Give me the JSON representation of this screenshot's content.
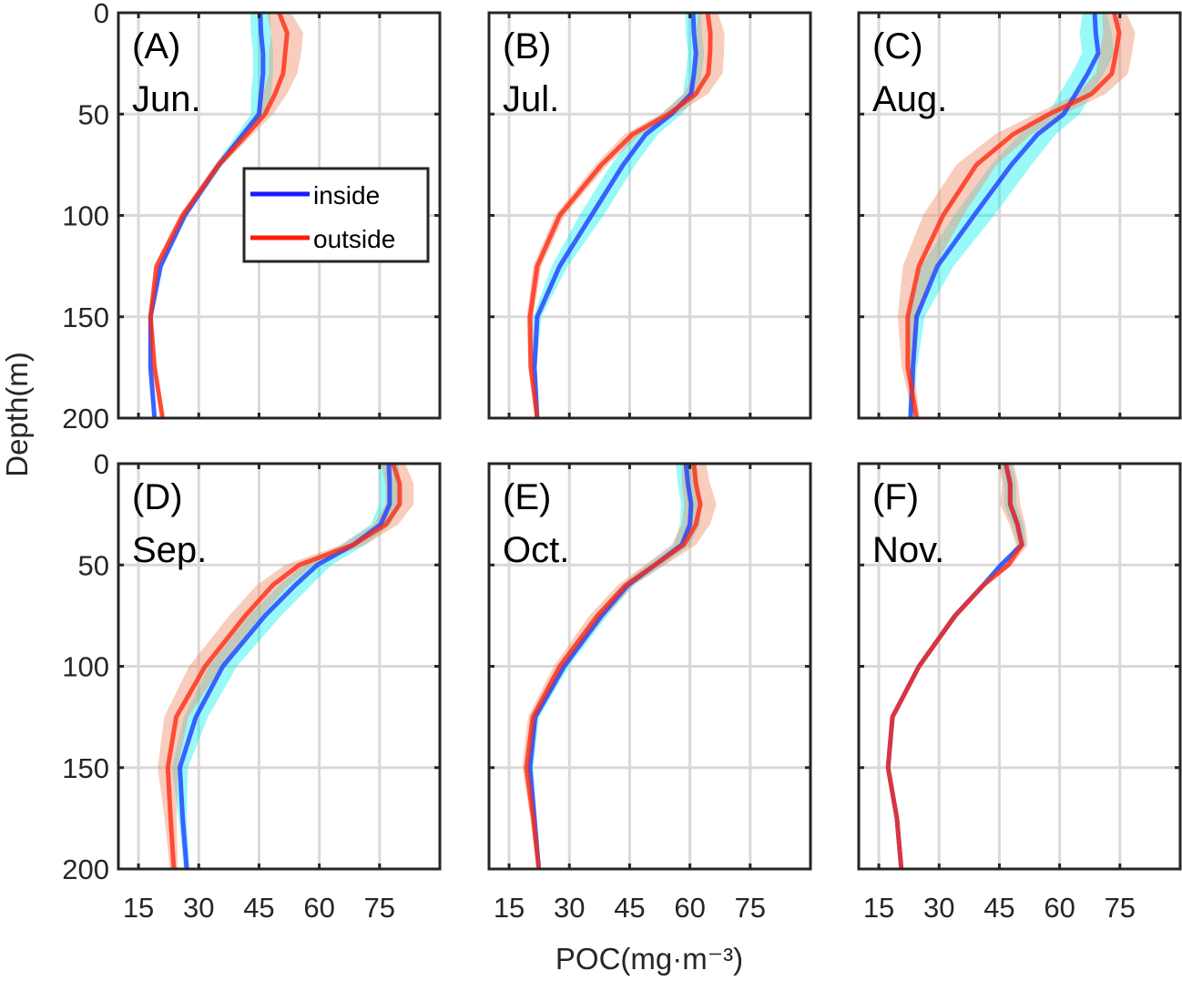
{
  "chart_data": {
    "type": "line",
    "layout": "2x3 panels",
    "xlabel": "POC(mg·m⁻³)",
    "ylabel": "Depth(m)",
    "xlim": [
      10,
      90
    ],
    "ylim": [
      0,
      200
    ],
    "y_reversed": true,
    "xticks": [
      15,
      30,
      45,
      60,
      75
    ],
    "yticks": [
      0,
      50,
      100,
      150,
      200
    ],
    "grid": true,
    "legend": {
      "position": "inside panel A, center-right",
      "entries": [
        "inside",
        "outside"
      ]
    },
    "colors": {
      "inside": "#1f3cff",
      "outside": "#ff2a14",
      "inside_band": "#00f0f0",
      "outside_band": "#f0906c"
    },
    "depth": [
      0,
      10,
      20,
      30,
      40,
      50,
      60,
      75,
      100,
      125,
      150,
      175,
      200
    ],
    "panels": [
      {
        "id": "(A)",
        "month": "Jun.",
        "inside": [
          45.3,
          45.5,
          46,
          46,
          45.5,
          45,
          41,
          35,
          26.5,
          20.5,
          18,
          18,
          19
        ],
        "outside": [
          50,
          52,
          51.5,
          51,
          49,
          46.5,
          42,
          35,
          26,
          19.5,
          18,
          19,
          21
        ],
        "inside_sd": [
          2.5,
          2.5,
          2.5,
          2.5,
          2.5,
          2,
          1.5,
          1,
          0.8,
          0.6,
          0.5,
          0.5,
          0.5
        ],
        "outside_sd": [
          3,
          4,
          4,
          3.5,
          3,
          2,
          1.5,
          1,
          0.8,
          0.6,
          0.5,
          0.5,
          0.5
        ]
      },
      {
        "id": "(B)",
        "month": "Jul.",
        "inside": [
          60.8,
          61,
          61.5,
          61,
          60.3,
          55.4,
          49,
          43.4,
          35.5,
          27.6,
          22,
          21.3,
          22
        ],
        "outside": [
          64.4,
          65.1,
          65,
          64.6,
          61.5,
          54.7,
          45.7,
          38,
          27.6,
          22,
          20.2,
          20.4,
          22
        ],
        "inside_sd": [
          2,
          2,
          2,
          2,
          2,
          2.5,
          3,
          3,
          3,
          2,
          1,
          0.6,
          0.5
        ],
        "outside_sd": [
          2.5,
          3.5,
          3.5,
          3.5,
          3,
          2,
          2,
          1.5,
          1.2,
          1,
          0.8,
          0.6,
          0.5
        ]
      },
      {
        "id": "(C)",
        "month": "Aug.",
        "inside": [
          68.7,
          69,
          69.6,
          67,
          64,
          61,
          54.5,
          48,
          38.7,
          29.6,
          24.4,
          23.5,
          22.9
        ],
        "outside": [
          73.6,
          74.8,
          74,
          73,
          68,
          57.4,
          48.4,
          39.3,
          31,
          25,
          22.2,
          22.2,
          24.4
        ],
        "inside_sd": [
          3,
          4,
          4,
          4,
          4,
          4,
          4.5,
          5,
          5,
          4,
          2,
          1,
          0.6
        ],
        "outside_sd": [
          3,
          4,
          4,
          4,
          3.5,
          3.5,
          4.5,
          5,
          5,
          4,
          2.5,
          1.5,
          0.8
        ]
      },
      {
        "id": "(D)",
        "month": "Sep.",
        "inside": [
          77.3,
          77.5,
          77.5,
          75.3,
          68.5,
          59.5,
          54,
          46.5,
          36,
          29.3,
          25.3,
          26,
          27
        ],
        "outside": [
          78.4,
          80,
          80,
          76.6,
          68.5,
          55,
          48.4,
          41.6,
          31.6,
          24.4,
          22.3,
          23,
          23.8
        ],
        "inside_sd": [
          2.5,
          2.5,
          2.5,
          2.5,
          3,
          3.5,
          4,
          4,
          3.5,
          3,
          2,
          1,
          0.7
        ],
        "outside_sd": [
          3,
          3.5,
          3.5,
          3,
          3,
          3.5,
          4,
          4,
          4,
          3,
          2.5,
          1.5,
          1
        ]
      },
      {
        "id": "(E)",
        "month": "Oct.",
        "inside": [
          59,
          59.5,
          60.3,
          60,
          58,
          51.3,
          44.5,
          38,
          28.7,
          21.5,
          20.2,
          21.3,
          22.4
        ],
        "outside": [
          61,
          61.5,
          62.6,
          61.5,
          58.5,
          51.3,
          44,
          37,
          27.6,
          20.9,
          19.3,
          21,
          22.4
        ],
        "inside_sd": [
          2.5,
          2.5,
          2.5,
          2.5,
          2,
          2,
          1.5,
          1.5,
          1.2,
          1,
          0.8,
          0.6,
          0.5
        ],
        "outside_sd": [
          3,
          3.5,
          4,
          3.5,
          3,
          2.5,
          2,
          2,
          1.5,
          1.2,
          1,
          0.7,
          0.5
        ]
      },
      {
        "id": "(F)",
        "month": "Nov.",
        "inside": [
          46.6,
          47.7,
          47.7,
          49.5,
          50.6,
          45.4,
          41,
          34,
          25,
          18.4,
          17.3,
          19.5,
          20.6
        ],
        "outside": [
          46.6,
          47.7,
          47.7,
          49.5,
          50.6,
          47.2,
          41,
          34,
          25,
          18.4,
          17.3,
          19.5,
          20.6
        ],
        "inside_sd": [
          1.5,
          1.5,
          1.5,
          1.5,
          1,
          0.8,
          0.8,
          0.8,
          0.6,
          0.5,
          0.4,
          0.4,
          0.4
        ],
        "outside_sd": [
          2,
          2,
          2.5,
          2,
          1.5,
          1,
          0.8,
          0.8,
          0.6,
          0.5,
          0.4,
          0.4,
          0.4
        ]
      }
    ]
  }
}
